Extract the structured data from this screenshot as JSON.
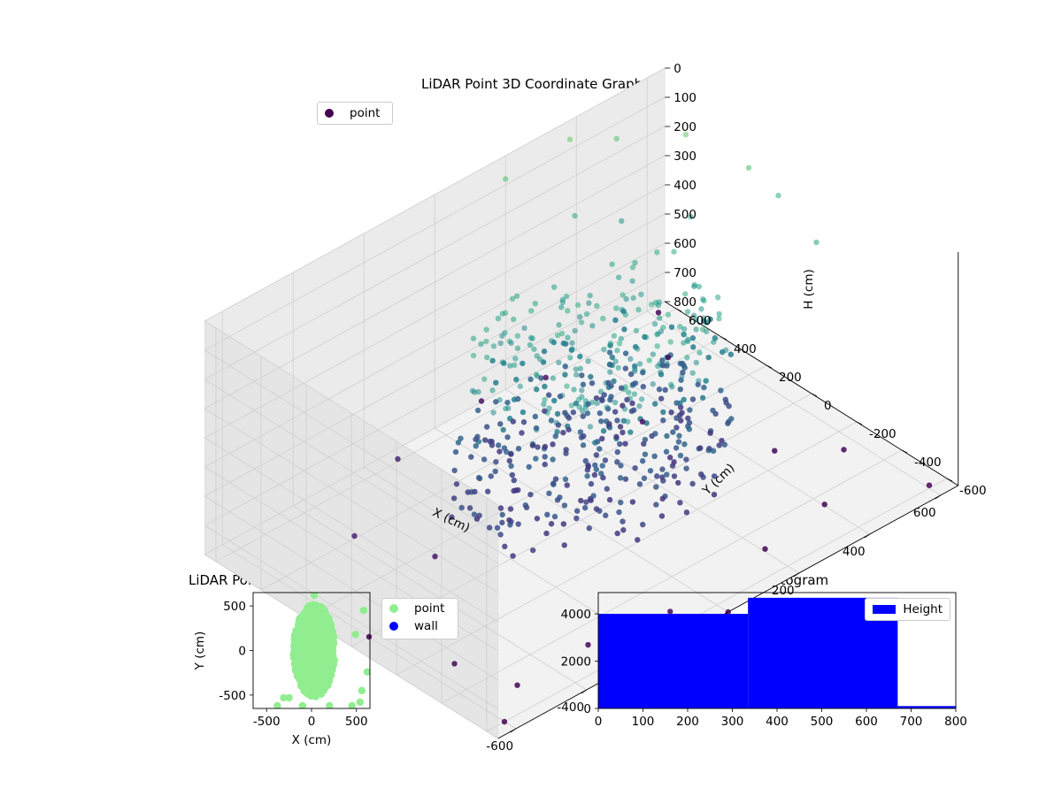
{
  "chart_data": [
    {
      "type": "scatter3d",
      "title": "LiDAR Point 3D Coordinate Graph",
      "xlabel": "X (cm)",
      "ylabel": "Y (cm)",
      "zlabel": "H (cm)",
      "xlim": [
        -650,
        650
      ],
      "ylim": [
        -650,
        650
      ],
      "zlim": [
        0,
        800
      ],
      "x_ticks": [
        -600,
        -400,
        -200,
        0,
        200,
        400,
        600
      ],
      "y_ticks": [
        -600,
        -400,
        -200,
        0,
        200,
        400,
        600
      ],
      "z_ticks": [
        0,
        100,
        200,
        300,
        400,
        500,
        600,
        700,
        800
      ],
      "legend": [
        "point"
      ],
      "legend_position": "upper-left",
      "colormap": "viridis",
      "grid": true,
      "series": [
        {
          "name": "point",
          "clusters": [
            {
              "center": [
                50,
                0,
                250
              ],
              "radius": 320,
              "height_range": [
                150,
                380
              ],
              "count": 260
            },
            {
              "center": [
                0,
                -50,
                520
              ],
              "radius": 350,
              "height_range": [
                450,
                650
              ],
              "count": 300
            }
          ],
          "outliers": [
            [
              -550,
              -300,
              780
            ],
            [
              -500,
              -500,
              790
            ],
            [
              -300,
              -500,
              785
            ],
            [
              -100,
              -550,
              780
            ],
            [
              200,
              -500,
              790
            ],
            [
              400,
              -450,
              795
            ],
            [
              550,
              -300,
              780
            ],
            [
              600,
              -600,
              790
            ],
            [
              -450,
              300,
              700
            ],
            [
              -600,
              -600,
              800
            ],
            [
              300,
              200,
              760
            ],
            [
              500,
              400,
              770
            ],
            [
              -200,
              500,
              700
            ],
            [
              600,
              600,
              780
            ],
            [
              100,
              600,
              750
            ],
            [
              -600,
              0,
              800
            ],
            [
              450,
              -150,
              790
            ],
            [
              -350,
              100,
              740
            ],
            [
              250,
              550,
              745
            ],
            [
              0,
              -650,
              800
            ],
            [
              600,
              200,
              90
            ],
            [
              550,
              400,
              40
            ],
            [
              450,
              550,
              60
            ],
            [
              350,
              600,
              20
            ],
            [
              200,
              650,
              80
            ],
            [
              620,
              100,
              150
            ],
            [
              600,
              -100,
              200
            ],
            [
              500,
              300,
              240
            ],
            [
              400,
              450,
              260
            ],
            [
              300,
              500,
              200
            ]
          ]
        }
      ]
    },
    {
      "type": "scatter",
      "title": "LiDAR Point 2D Coordinate Graph",
      "xlabel": "X (cm)",
      "ylabel": "Y (cm)",
      "xlim": [
        -650,
        650
      ],
      "ylim": [
        -650,
        650
      ],
      "x_ticks": [
        -500,
        0,
        500
      ],
      "y_ticks": [
        -500,
        0,
        500
      ],
      "legend": [
        "point",
        "wall"
      ],
      "legend_position": "outside-right",
      "series": [
        {
          "name": "point",
          "color": "#90ee90",
          "cluster": {
            "center": [
              30,
              0
            ],
            "half_width": [
              230,
              520
            ],
            "count": 900
          },
          "outliers": [
            [
              580,
              450
            ],
            [
              620,
              -240
            ],
            [
              560,
              -450
            ],
            [
              540,
              -580
            ],
            [
              490,
              180
            ],
            [
              -250,
              -530
            ],
            [
              -310,
              -530
            ],
            [
              -380,
              -620
            ],
            [
              30,
              620
            ],
            [
              450,
              -620
            ],
            [
              -100,
              -620
            ],
            [
              200,
              -620
            ]
          ]
        },
        {
          "name": "wall",
          "color": "#0000ff",
          "points": []
        }
      ]
    },
    {
      "type": "bar",
      "title": "Height Histogram",
      "xlabel": "",
      "ylabel": "",
      "xlim": [
        0,
        800
      ],
      "ylim": [
        0,
        4900
      ],
      "x_ticks": [
        0,
        100,
        200,
        300,
        400,
        500,
        600,
        700,
        800
      ],
      "y_ticks": [
        0,
        2000,
        4000
      ],
      "legend": [
        "Height"
      ],
      "legend_position": "upper-right",
      "color": "#0000ff",
      "bins": [
        {
          "start": 0,
          "end": 335,
          "value": 4000
        },
        {
          "start": 335,
          "end": 670,
          "value": 4680
        },
        {
          "start": 670,
          "end": 800,
          "value": 100
        }
      ]
    }
  ]
}
